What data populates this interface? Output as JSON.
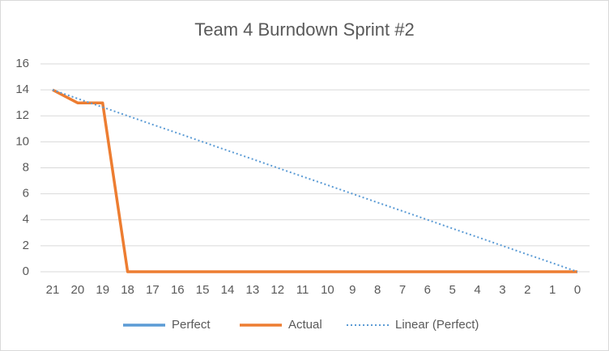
{
  "chart_data": {
    "type": "line",
    "title": "Team 4 Burndown Sprint #2",
    "categories": [
      "21",
      "20",
      "19",
      "18",
      "17",
      "16",
      "15",
      "14",
      "13",
      "12",
      "11",
      "10",
      "9",
      "8",
      "7",
      "6",
      "5",
      "4",
      "3",
      "2",
      "1",
      "0"
    ],
    "series": [
      {
        "name": "Perfect",
        "color": "#5b9bd5",
        "line_style": "solid",
        "values": [
          null,
          null,
          null,
          null,
          null,
          null,
          null,
          null,
          null,
          null,
          null,
          null,
          null,
          null,
          null,
          null,
          null,
          null,
          null,
          null,
          null,
          null
        ]
      },
      {
        "name": "Actual",
        "color": "#ed7d31",
        "line_style": "solid",
        "values": [
          14,
          13,
          13,
          0,
          0,
          0,
          0,
          0,
          0,
          0,
          0,
          0,
          0,
          0,
          0,
          0,
          0,
          0,
          0,
          0,
          0,
          0
        ]
      },
      {
        "name": "Linear (Perfect)",
        "color": "#5b9bd5",
        "line_style": "dotted",
        "values": [
          14,
          13.33,
          12.67,
          12,
          11.33,
          10.67,
          10,
          9.33,
          8.67,
          8,
          7.33,
          6.67,
          6,
          5.33,
          4.67,
          4,
          3.33,
          2.67,
          2,
          1.33,
          0.67,
          0
        ]
      }
    ],
    "ylim": [
      0,
      16
    ],
    "yticks": [
      0,
      2,
      4,
      6,
      8,
      10,
      12,
      14,
      16
    ],
    "grid": true,
    "legend": "bottom"
  }
}
